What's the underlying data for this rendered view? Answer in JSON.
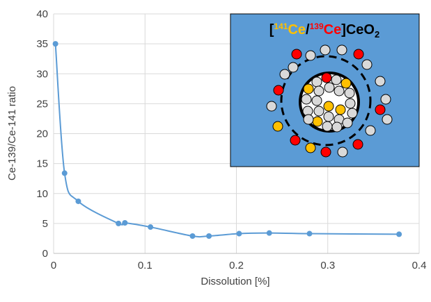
{
  "chart_data": {
    "type": "scatter",
    "smooth": true,
    "x_label": "Dissolution [%]",
    "y_label": "Ce-139/Ce-141 ratio",
    "x": [
      0.002,
      0.012,
      0.027,
      0.071,
      0.078,
      0.106,
      0.152,
      0.17,
      0.203,
      0.236,
      0.28,
      0.378
    ],
    "values": [
      35.0,
      13.4,
      8.7,
      5.0,
      5.1,
      4.4,
      2.9,
      2.9,
      3.3,
      3.4,
      3.3,
      3.2
    ],
    "color": "#5b9bd5",
    "xlim": [
      0,
      0.4
    ],
    "xticks": [
      0,
      0.1,
      0.2,
      0.3,
      0.4
    ],
    "ylim": [
      0,
      40
    ],
    "yticks": [
      0,
      5,
      10,
      15,
      20,
      25,
      30,
      35,
      40
    ],
    "grid": true,
    "inset_label": [
      "[",
      "141",
      "Ce",
      "/",
      "139",
      "Ce",
      "]CeO",
      "2"
    ]
  }
}
